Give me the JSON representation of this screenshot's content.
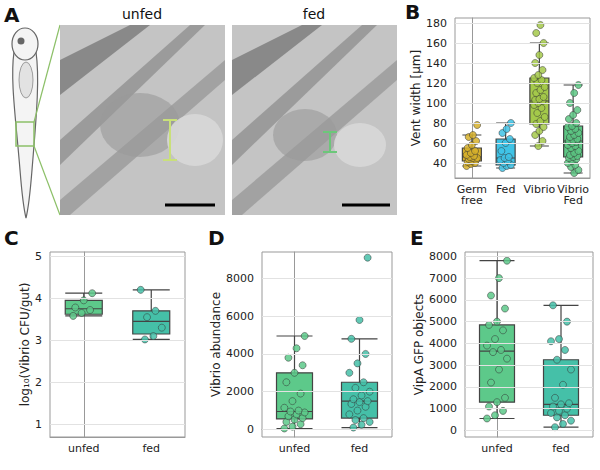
{
  "image_panel": {
    "panel_label": "A",
    "titles": [
      "unfed",
      "fed"
    ]
  },
  "chart_data": [
    {
      "type": "boxplot",
      "panel_label": "B",
      "y_label": "Vent width [μm]",
      "categories": [
        "Germ free",
        "Fed",
        "Vibrio",
        "Vibrio Fed"
      ],
      "colors": [
        "#d6b02c",
        "#3fc3e6",
        "#a4c94a",
        "#5cc683"
      ],
      "boxes": [
        [
          37,
          42,
          46,
          55,
          68
        ],
        [
          35,
          38,
          45,
          64,
          80
        ],
        [
          57,
          79,
          102,
          125,
          160
        ],
        [
          30,
          46,
          62,
          77,
          118
        ]
      ],
      "points": [
        [
          37,
          39,
          40,
          41,
          42,
          43,
          44,
          45,
          45,
          46,
          47,
          48,
          50,
          52,
          55,
          58,
          62,
          66,
          68,
          78
        ],
        [
          35,
          37,
          38,
          40,
          42,
          43,
          45,
          46,
          52,
          60,
          64,
          70,
          74,
          80
        ],
        [
          57,
          62,
          68,
          72,
          76,
          79,
          82,
          86,
          90,
          95,
          98,
          100,
          102,
          103,
          104,
          106,
          110,
          113,
          116,
          120,
          123,
          125,
          128,
          133,
          140,
          148,
          160,
          170,
          178
        ],
        [
          30,
          33,
          36,
          38,
          40,
          42,
          44,
          45,
          46,
          47,
          48,
          50,
          52,
          55,
          57,
          58,
          60,
          61,
          62,
          63,
          64,
          66,
          68,
          70,
          72,
          74,
          76,
          77,
          80,
          84,
          88,
          93,
          100,
          110,
          118
        ]
      ],
      "ylim": [
        25,
        185
      ],
      "yticks": [
        40,
        60,
        80,
        100,
        120,
        140,
        160,
        180
      ],
      "grid": true
    },
    {
      "type": "boxplot",
      "panel_label": "C",
      "y_label": "log₁₀(Vibrio CFU/gut)",
      "categories": [
        "unfed",
        "fed"
      ],
      "colors": [
        "#5dc98a",
        "#45c0a8"
      ],
      "boxes": [
        [
          3.58,
          3.62,
          3.75,
          3.95,
          4.12
        ],
        [
          3.02,
          3.15,
          3.45,
          3.7,
          4.2
        ]
      ],
      "points": [
        [
          3.58,
          3.65,
          3.72,
          3.78,
          3.95,
          4.12
        ],
        [
          3.02,
          3.1,
          3.3,
          3.55,
          3.7,
          4.2
        ]
      ],
      "ylim": [
        0.7,
        5.1
      ],
      "yticks": [
        1,
        2,
        3,
        4,
        5
      ],
      "grid": true
    },
    {
      "type": "boxplot",
      "panel_label": "D",
      "y_label": "Vibrio abundance",
      "categories": [
        "unfed",
        "fed"
      ],
      "colors": [
        "#5dc98a",
        "#45c0a8"
      ],
      "boxes": [
        [
          50,
          560,
          950,
          3000,
          4950
        ],
        [
          100,
          600,
          1500,
          2500,
          4800
        ]
      ],
      "points": [
        [
          50,
          150,
          280,
          400,
          520,
          600,
          700,
          800,
          900,
          950,
          1000,
          1150,
          1500,
          1900,
          2500,
          3000,
          3400,
          3800,
          4300,
          4950
        ],
        [
          100,
          250,
          400,
          500,
          600,
          800,
          1000,
          1200,
          1350,
          1450,
          1500,
          1600,
          1800,
          2000,
          2200,
          2500,
          3000,
          3500,
          4000,
          4800,
          5800,
          9100
        ]
      ],
      "ylim": [
        -400,
        9400
      ],
      "yticks": [
        0,
        2000,
        4000,
        6000,
        8000
      ],
      "grid": true
    },
    {
      "type": "boxplot",
      "panel_label": "E",
      "y_label": "VipA GFP objects",
      "categories": [
        "unfed",
        "fed"
      ],
      "colors": [
        "#5dc98a",
        "#45c0a8"
      ],
      "boxes": [
        [
          550,
          1300,
          3650,
          4850,
          7800
        ],
        [
          150,
          700,
          1200,
          3250,
          5750
        ]
      ],
      "points": [
        [
          550,
          700,
          900,
          1100,
          1300,
          1500,
          2200,
          2800,
          3300,
          3600,
          3700,
          3900,
          4200,
          4600,
          4850,
          5000,
          5600,
          6200,
          7000,
          7800
        ],
        [
          150,
          300,
          450,
          600,
          700,
          800,
          900,
          1000,
          1100,
          1200,
          1250,
          1500,
          2100,
          2800,
          3250,
          3700,
          4100,
          4200,
          5000,
          5750
        ]
      ],
      "ylim": [
        -300,
        8200
      ],
      "yticks": [
        0,
        1000,
        2000,
        3000,
        4000,
        5000,
        6000,
        7000,
        8000
      ],
      "grid": true
    }
  ]
}
